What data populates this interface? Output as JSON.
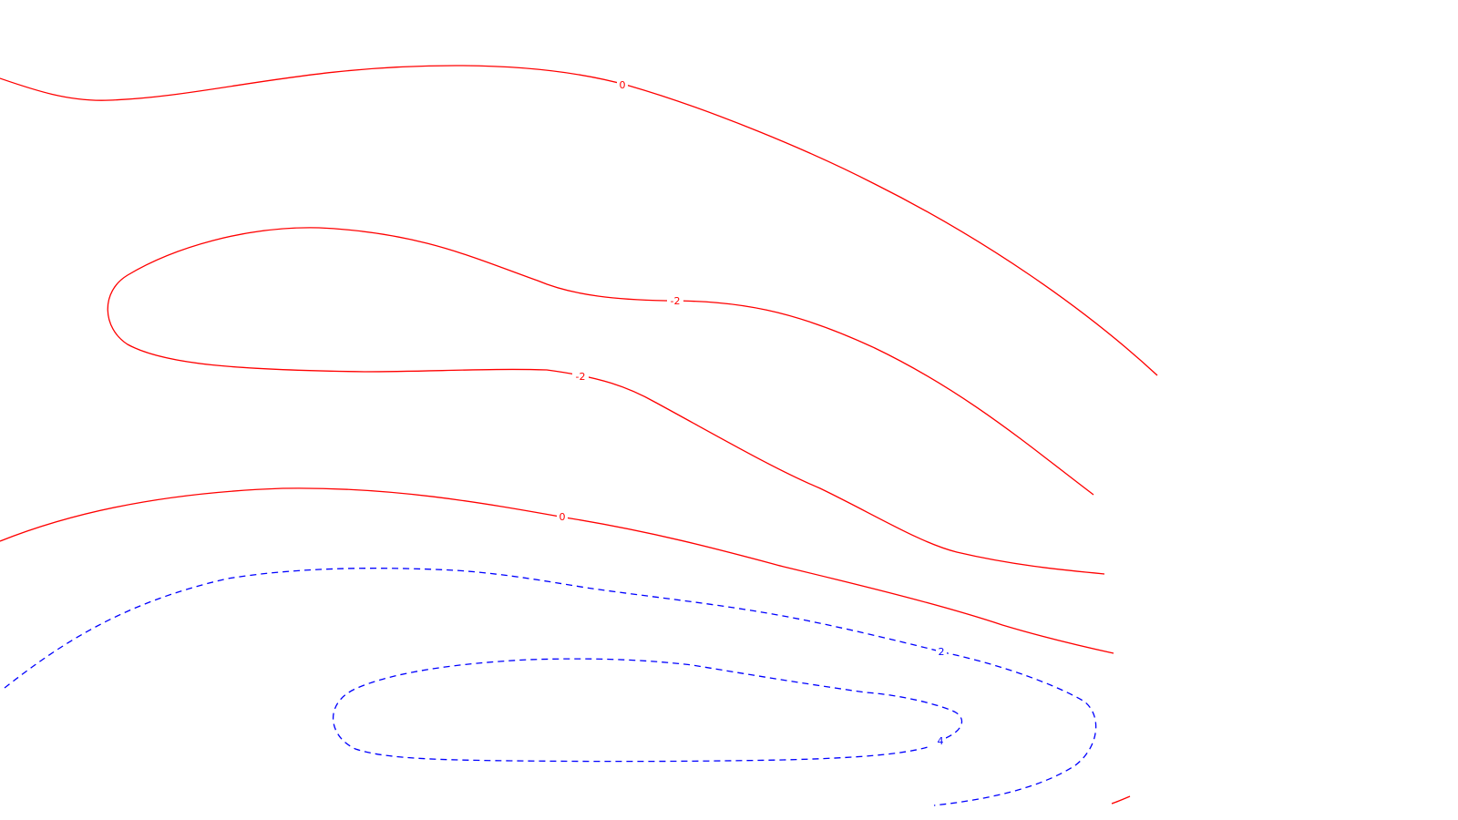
{
  "chart_data": {
    "type": "contour",
    "title": "",
    "xlabel": "",
    "ylabel": "",
    "grid": false,
    "legend": "none",
    "colors": {
      "positive": "#ff0000",
      "negative": "#0000ff",
      "background": "#ffffff"
    },
    "contours": [
      {
        "id": "top-zero-contour",
        "level": "0",
        "style": "solid",
        "color": "#ff0000"
      },
      {
        "id": "minus-two-contour",
        "level": "-2",
        "style": "solid",
        "color": "#ff0000"
      },
      {
        "id": "lower-zero-contour",
        "level": "0",
        "style": "solid",
        "color": "#ff0000"
      },
      {
        "id": "corner-contour",
        "level": "",
        "style": "solid",
        "color": "#ff0000"
      },
      {
        "id": "two-contour",
        "level": "2",
        "style": "dashed",
        "color": "#0000ff"
      },
      {
        "id": "four-contour",
        "level": "4",
        "style": "dashed",
        "color": "#0000ff"
      }
    ],
    "labels": [
      {
        "contour": "top-zero-contour",
        "text": "0",
        "color": "#ff0000"
      },
      {
        "contour": "minus-two-contour",
        "text": "-2",
        "color": "#ff0000"
      },
      {
        "contour": "minus-two-contour",
        "text": "-2",
        "color": "#ff0000"
      },
      {
        "contour": "lower-zero-contour",
        "text": "0",
        "color": "#ff0000"
      },
      {
        "contour": "two-contour",
        "text": "2",
        "color": "#0000ff"
      },
      {
        "contour": "four-contour",
        "text": "4",
        "color": "#0000ff"
      }
    ]
  }
}
